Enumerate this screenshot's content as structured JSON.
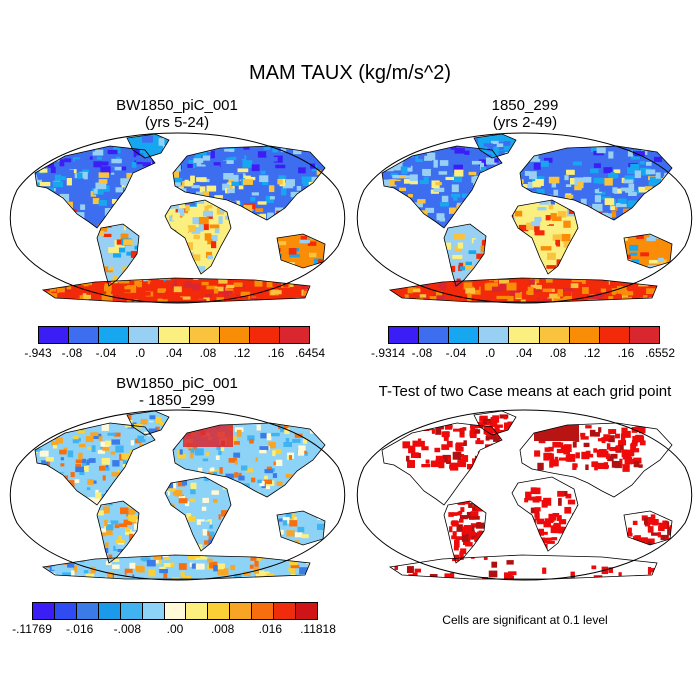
{
  "figure": {
    "title": "MAM TAUX (kg/m/s^2)"
  },
  "panels": [
    {
      "id": "p1",
      "title_line1": "BW1850_piC_001",
      "title_line2": "(yrs 5-24)",
      "colorbar": {
        "colors": [
          "#3b1ef5",
          "#3d6ef0",
          "#17a7f0",
          "#97d0f2",
          "#fbef7f",
          "#f9c33d",
          "#fa8d07",
          "#f32a0a",
          "#d9262f"
        ],
        "labels": [
          "-.943",
          "-.08",
          "-.04",
          ".0",
          ".04",
          ".08",
          ".12",
          ".16",
          ".6454"
        ]
      }
    },
    {
      "id": "p2",
      "title_line1": "1850_299",
      "title_line2": "(yrs 2-49)",
      "colorbar": {
        "colors": [
          "#3b1ef5",
          "#3d6ef0",
          "#17a7f0",
          "#97d0f2",
          "#fbef7f",
          "#f9c33d",
          "#fa8d07",
          "#f32a0a",
          "#d9262f"
        ],
        "labels": [
          "-.9314",
          "-.08",
          "-.04",
          ".0",
          ".04",
          ".08",
          ".12",
          ".16",
          ".6552"
        ]
      }
    },
    {
      "id": "p3",
      "title_line1": "BW1850_piC_001",
      "title_line2": "- 1850_299",
      "colorbar": {
        "colors": [
          "#3b1ef5",
          "#2e4cf2",
          "#3a7be8",
          "#1a9ae8",
          "#40b3f0",
          "#8dd2f7",
          "#fff9d8",
          "#fdef7e",
          "#fbd036",
          "#f8a526",
          "#f86e0f",
          "#ef2c0c",
          "#cf1418"
        ],
        "labels": [
          "-.11769",
          "-.016",
          "-.008",
          ".00",
          ".008",
          ".016",
          ".11818"
        ]
      }
    },
    {
      "id": "p4",
      "title_line1": "T-Test of two Case means at each grid point",
      "note": "Cells are significant at 0.1 level"
    }
  ]
}
